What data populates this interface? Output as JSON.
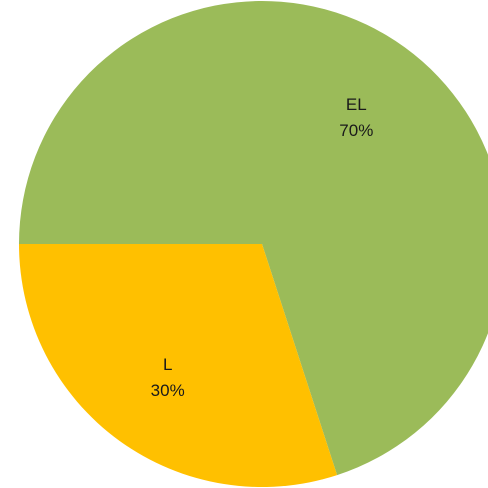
{
  "chart_data": {
    "type": "pie",
    "slices": [
      {
        "label": "EL",
        "value": 70,
        "value_label": "70%",
        "color": "#9bbb59"
      },
      {
        "label": "L",
        "value": 30,
        "value_label": "30%",
        "color": "#ffc000"
      }
    ],
    "start_angle_deg": 180,
    "direction": "clockwise",
    "legend": "none"
  }
}
